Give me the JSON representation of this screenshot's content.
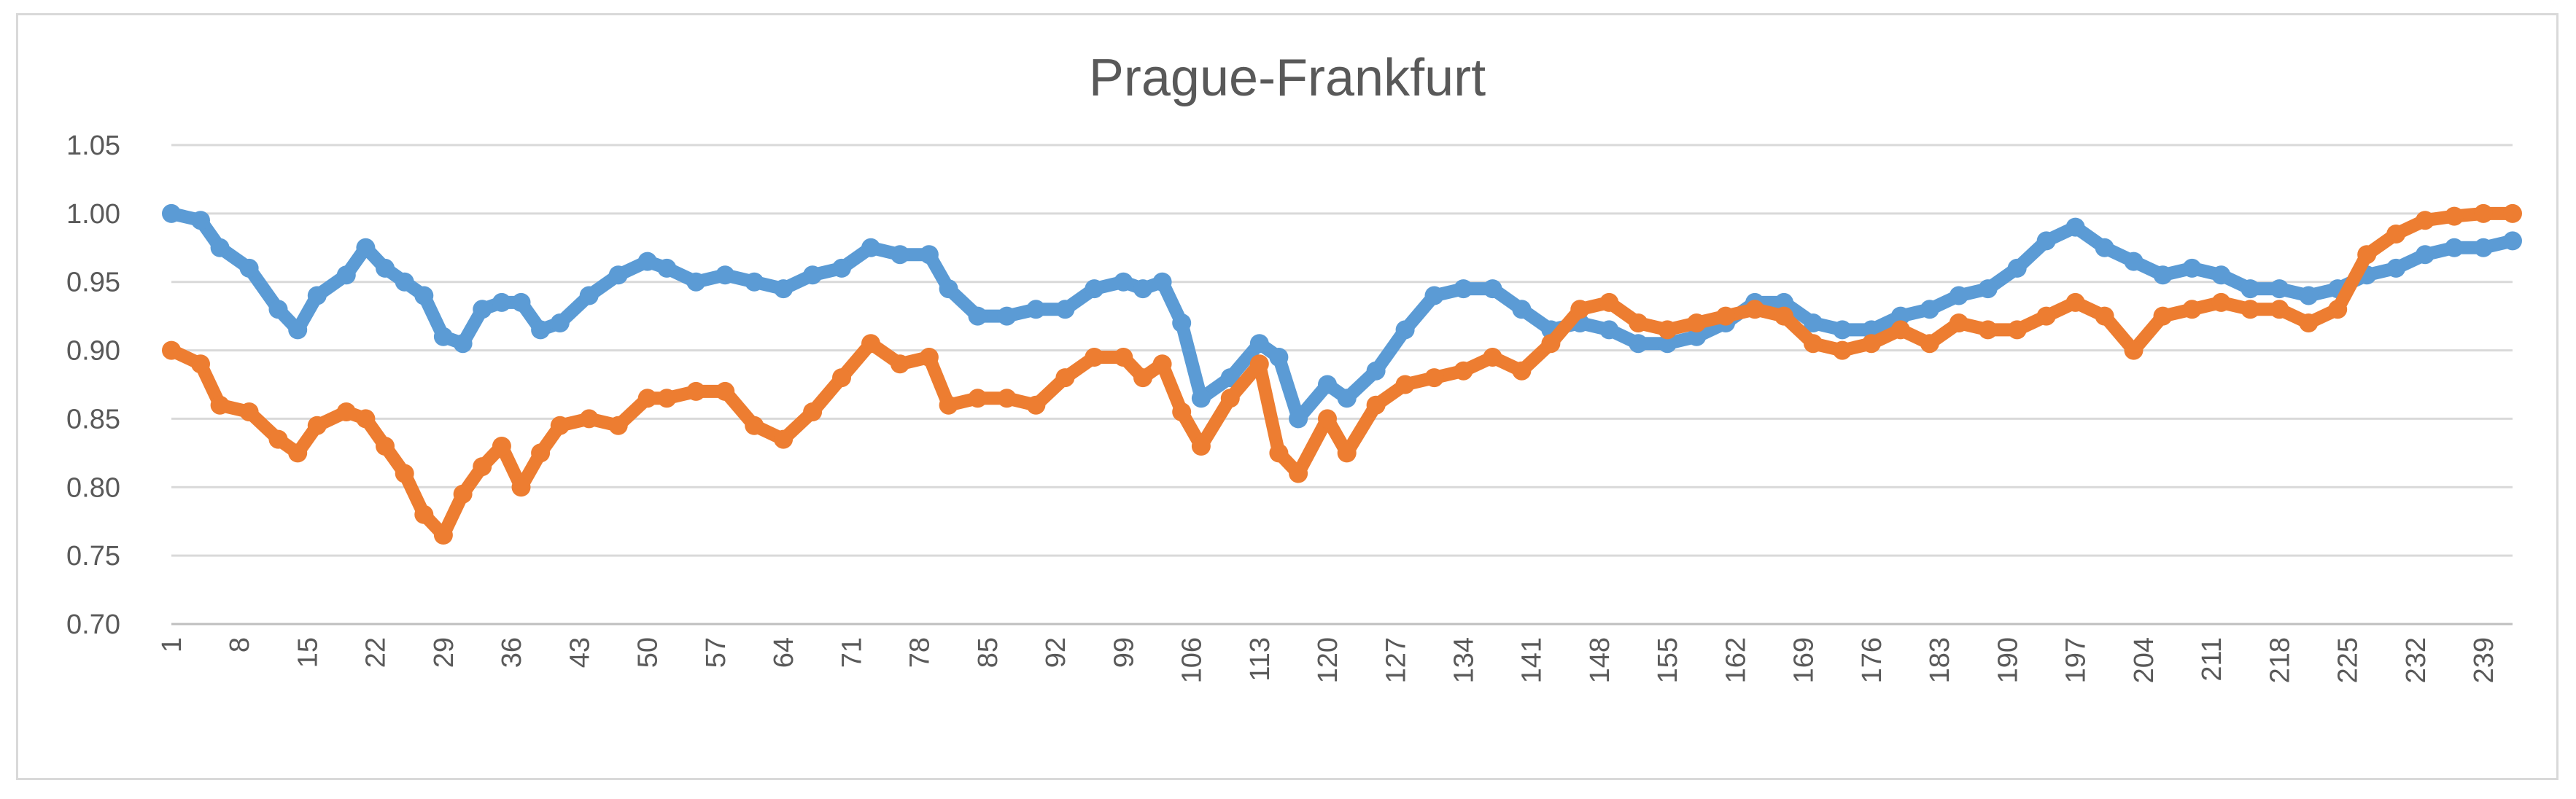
{
  "chart_data": {
    "type": "line",
    "title": "Prague-Frankfurt",
    "xlabel": "",
    "ylabel": "",
    "ylim": [
      0.7,
      1.05
    ],
    "yticks": [
      "0.70",
      "0.75",
      "0.80",
      "0.85",
      "0.90",
      "0.95",
      "1.00",
      "1.05"
    ],
    "xticks": [
      1,
      8,
      15,
      22,
      29,
      36,
      43,
      50,
      57,
      64,
      71,
      78,
      85,
      92,
      99,
      106,
      113,
      120,
      127,
      134,
      141,
      148,
      155,
      162,
      169,
      176,
      183,
      190,
      197,
      204,
      211,
      218,
      225,
      232,
      239
    ],
    "x_range": [
      1,
      242
    ],
    "grid": true,
    "legend": "none",
    "series": [
      {
        "color": "#5b9bd5",
        "x": [
          1,
          4,
          6,
          9,
          12,
          14,
          16,
          19,
          21,
          23,
          25,
          27,
          29,
          31,
          33,
          35,
          37,
          39,
          41,
          44,
          47,
          50,
          52,
          55,
          58,
          61,
          64,
          67,
          70,
          73,
          76,
          79,
          81,
          84,
          87,
          90,
          93,
          96,
          99,
          101,
          103,
          105,
          107,
          110,
          113,
          115,
          117,
          120,
          122,
          125,
          128,
          131,
          134,
          137,
          140,
          143,
          146,
          149,
          152,
          155,
          158,
          161,
          164,
          167,
          170,
          173,
          176,
          179,
          182,
          185,
          188,
          191,
          194,
          197,
          200,
          203,
          206,
          209,
          212,
          215,
          218,
          221,
          224,
          227,
          230,
          233,
          236,
          239,
          242
        ],
        "values": [
          1.0,
          0.995,
          0.975,
          0.96,
          0.93,
          0.915,
          0.94,
          0.955,
          0.975,
          0.96,
          0.95,
          0.94,
          0.91,
          0.905,
          0.93,
          0.935,
          0.935,
          0.915,
          0.92,
          0.94,
          0.955,
          0.965,
          0.96,
          0.95,
          0.955,
          0.95,
          0.945,
          0.955,
          0.96,
          0.975,
          0.97,
          0.97,
          0.945,
          0.925,
          0.925,
          0.93,
          0.93,
          0.945,
          0.95,
          0.945,
          0.95,
          0.92,
          0.865,
          0.88,
          0.905,
          0.895,
          0.85,
          0.875,
          0.865,
          0.885,
          0.915,
          0.94,
          0.945,
          0.945,
          0.93,
          0.915,
          0.92,
          0.915,
          0.905,
          0.905,
          0.91,
          0.92,
          0.935,
          0.935,
          0.92,
          0.915,
          0.915,
          0.925,
          0.93,
          0.94,
          0.945,
          0.96,
          0.98,
          0.99,
          0.975,
          0.965,
          0.955,
          0.96,
          0.955,
          0.945,
          0.945,
          0.94,
          0.945,
          0.955,
          0.96,
          0.97,
          0.975,
          0.975,
          0.98
        ]
      },
      {
        "color": "#ed7d31",
        "x": [
          1,
          4,
          6,
          9,
          12,
          14,
          16,
          19,
          21,
          23,
          25,
          27,
          29,
          31,
          33,
          35,
          37,
          39,
          41,
          44,
          47,
          50,
          52,
          55,
          58,
          61,
          64,
          67,
          70,
          73,
          76,
          79,
          81,
          84,
          87,
          90,
          93,
          96,
          99,
          101,
          103,
          105,
          107,
          110,
          113,
          115,
          117,
          120,
          122,
          125,
          128,
          131,
          134,
          137,
          140,
          143,
          146,
          149,
          152,
          155,
          158,
          161,
          164,
          167,
          170,
          173,
          176,
          179,
          182,
          185,
          188,
          191,
          194,
          197,
          200,
          203,
          206,
          209,
          212,
          215,
          218,
          221,
          224,
          227,
          230,
          233,
          236,
          239,
          242
        ],
        "values": [
          0.9,
          0.89,
          0.86,
          0.855,
          0.835,
          0.825,
          0.845,
          0.855,
          0.85,
          0.83,
          0.81,
          0.78,
          0.765,
          0.795,
          0.815,
          0.83,
          0.8,
          0.825,
          0.845,
          0.85,
          0.845,
          0.865,
          0.865,
          0.87,
          0.87,
          0.845,
          0.835,
          0.855,
          0.88,
          0.905,
          0.89,
          0.895,
          0.86,
          0.865,
          0.865,
          0.86,
          0.88,
          0.895,
          0.895,
          0.88,
          0.89,
          0.855,
          0.83,
          0.865,
          0.89,
          0.825,
          0.81,
          0.85,
          0.825,
          0.86,
          0.875,
          0.88,
          0.885,
          0.895,
          0.885,
          0.905,
          0.93,
          0.935,
          0.92,
          0.915,
          0.92,
          0.925,
          0.93,
          0.925,
          0.905,
          0.9,
          0.905,
          0.915,
          0.905,
          0.92,
          0.915,
          0.915,
          0.925,
          0.935,
          0.925,
          0.9,
          0.925,
          0.93,
          0.935,
          0.93,
          0.93,
          0.92,
          0.93,
          0.97,
          0.985,
          0.995,
          0.998,
          1.0,
          1.0
        ]
      }
    ]
  }
}
